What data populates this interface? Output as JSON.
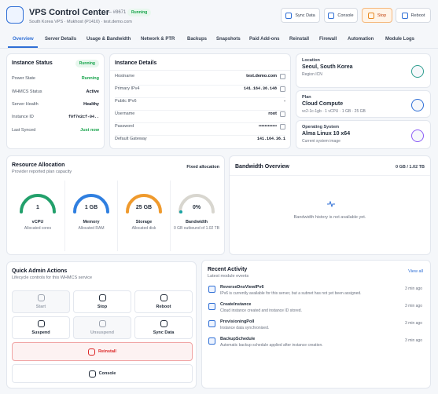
{
  "header": {
    "title": "VPS Control Center",
    "id": "— #8671",
    "status": "Running",
    "subtitle": "South Korea VPS · Mukhost (P1410) · test.demo.com",
    "buttons": [
      "Sync Data",
      "Console",
      "Stop",
      "Reboot"
    ]
  },
  "tabs": [
    "Overview",
    "Server Details",
    "Usage & Bandwidth",
    "Network & PTR",
    "Backups",
    "Snapshots",
    "Paid Add-ons",
    "Reinstall",
    "Firewall",
    "Automation",
    "Module Logs"
  ],
  "instance_status": {
    "title": "Instance Status",
    "badge": "Running",
    "rows": [
      [
        "Power State",
        "Running"
      ],
      [
        "WHMCS Status",
        "Active"
      ],
      [
        "Server Health",
        "Healthy"
      ],
      [
        "Instance ID",
        "f0f7e2cf-04.."
      ],
      [
        "Last Synced",
        "Just now"
      ]
    ]
  },
  "instance_details": {
    "title": "Instance Details",
    "rows": [
      [
        "Hostname",
        "test.demo.com"
      ],
      [
        "Primary IPv4",
        "141.164.36.148"
      ],
      [
        "Public IPv6",
        "-"
      ],
      [
        "Username",
        "root"
      ],
      [
        "Password",
        "••••••••••••"
      ],
      [
        "Default Gateway",
        "141.164.36.1"
      ]
    ]
  },
  "location": {
    "label": "Location",
    "value": "Seoul, South Korea",
    "sub": "Region ICN"
  },
  "plan": {
    "label": "Plan",
    "value": "Cloud Compute",
    "sub": "vc2-1c-1gb · 1 vCPU · 1 GB · 25 GB"
  },
  "os": {
    "label": "Operating System",
    "value": "Alma Linux 10 x64",
    "sub": "Current system image"
  },
  "resources": {
    "title": "Resource Allocation",
    "subtitle": "Provider reported plan capacity",
    "badge": "Fixed allocation",
    "items": [
      {
        "value": "1",
        "label": "vCPU",
        "sub": "Allocated cores"
      },
      {
        "value": "1 GB",
        "label": "Memory",
        "sub": "Allocated RAM"
      },
      {
        "value": "25 GB",
        "label": "Storage",
        "sub": "Allocated disk"
      },
      {
        "value": "0%",
        "label": "Bandwidth",
        "sub": "0 GB outbound of 1.02 TB"
      }
    ]
  },
  "bandwidth": {
    "title": "Bandwidth Overview",
    "usage": "0 GB / 1.02 TB",
    "empty": "Bandwidth history is not available yet."
  },
  "actions": {
    "title": "Quick Admin Actions",
    "subtitle": "Lifecycle controls for this WHMCS service",
    "buttons": [
      "Start",
      "Stop",
      "Reboot",
      "Suspend",
      "Unsuspend",
      "Sync Data",
      "Reinstall",
      "Console"
    ]
  },
  "activity": {
    "title": "Recent Activity",
    "subtitle": "Latest module events",
    "link": "View all",
    "items": [
      {
        "name": "ReverseDnsViewIPv6",
        "text": "IPv6 is currently available for this server, but a subnet has not yet been assigned.",
        "time": "3 min ago"
      },
      {
        "name": "CreateInstance",
        "text": "Cloud instance created and instance ID stored.",
        "time": "3 min ago"
      },
      {
        "name": "ProvisioningPoll",
        "text": "Instance data synchronised.",
        "time": "3 min ago"
      },
      {
        "name": "BackupSchedule",
        "text": "Automatic backup schedule applied after instance creation.",
        "time": "3 min ago"
      }
    ]
  }
}
